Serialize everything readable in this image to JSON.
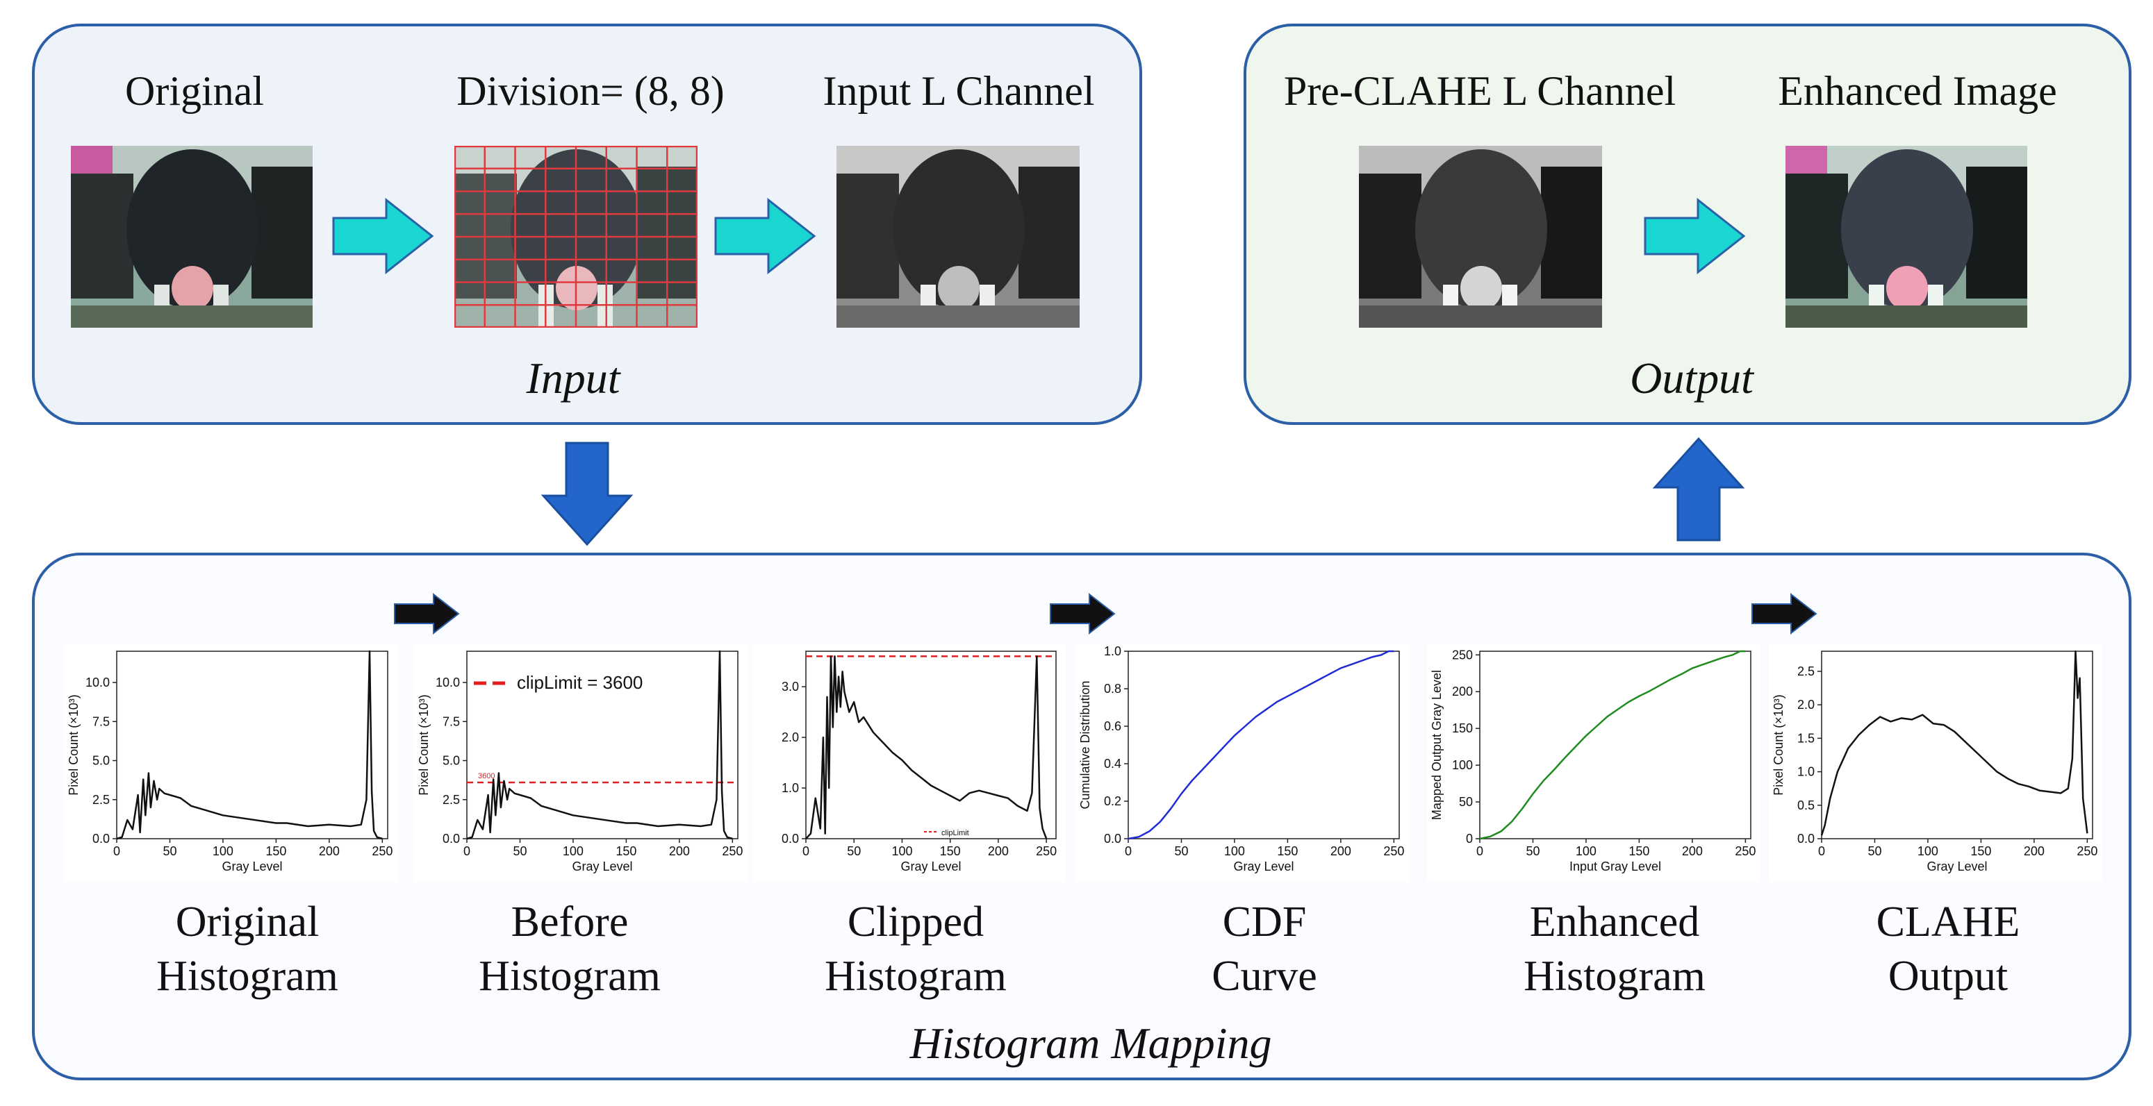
{
  "input_panel": {
    "section_label": "Input",
    "original_label": "Original",
    "division_label": "Division= (8, 8)",
    "input_l_label": "Input L Channel"
  },
  "output_panel": {
    "section_label": "Output",
    "pre_clahe_label": "Pre-CLAHE L Channel",
    "enhanced_label": "Enhanced Image"
  },
  "mapping_panel": {
    "section_label": "Histogram Mapping",
    "captions": [
      [
        "Original",
        "Histogram"
      ],
      [
        "Before",
        "Histogram"
      ],
      [
        "Clipped",
        "Histogram"
      ],
      [
        "CDF",
        "Curve"
      ],
      [
        "Enhanced",
        "Histogram"
      ],
      [
        "CLAHE",
        "Output"
      ]
    ]
  },
  "colors": {
    "panel_border": "#2b5fa8",
    "input_fill": "#eef3fa",
    "output_fill": "#eef6ee",
    "mapping_fill": "#fbfcff",
    "cyan_arrow": "#19d6d0",
    "blue_arrow": "#2266cc",
    "grid_line": "#e0393e",
    "cdf_curve": "#1f2bd6",
    "mapping_curve": "#1e8c1e",
    "clip_line": "#e02020"
  },
  "icons": [
    "cyan-right-arrow-icon",
    "blue-down-arrow-icon",
    "blue-up-arrow-icon",
    "black-right-arrow-icon"
  ],
  "chart_data": [
    {
      "type": "line",
      "name_key": "original",
      "xlabel": "Gray Level",
      "ylabel": "Pixel Count (×10³)",
      "xlim": [
        0,
        255
      ],
      "ylim": [
        0,
        12
      ],
      "xticks": [
        0,
        50,
        100,
        150,
        200,
        250
      ],
      "yticks": [
        0.0,
        2.5,
        5.0,
        7.5,
        10.0
      ],
      "x": [
        0,
        5,
        10,
        15,
        20,
        22,
        25,
        27,
        30,
        32,
        35,
        38,
        40,
        45,
        50,
        60,
        70,
        80,
        100,
        120,
        140,
        150,
        160,
        180,
        200,
        220,
        230,
        235,
        238,
        240,
        242,
        245,
        250
      ],
      "y": [
        0.0,
        0.1,
        1.2,
        0.6,
        2.8,
        0.4,
        3.8,
        1.5,
        4.2,
        2.0,
        3.7,
        2.5,
        3.2,
        2.9,
        2.8,
        2.6,
        2.1,
        1.9,
        1.5,
        1.3,
        1.1,
        1.0,
        1.0,
        0.8,
        0.9,
        0.8,
        0.9,
        2.5,
        12.0,
        3.0,
        0.5,
        0.1,
        0.0
      ]
    },
    {
      "type": "line",
      "name_key": "before",
      "xlabel": "Gray Level",
      "ylabel": "Pixel Count (×10³)",
      "legend": "clipLimit = 3600",
      "small_label": "3600",
      "clip": 3.6,
      "xlim": [
        0,
        255
      ],
      "ylim": [
        0,
        12
      ],
      "xticks": [
        0,
        50,
        100,
        150,
        200,
        250
      ],
      "yticks": [
        0.0,
        2.5,
        5.0,
        7.5,
        10.0
      ],
      "x": [
        0,
        5,
        10,
        15,
        20,
        22,
        25,
        27,
        30,
        32,
        35,
        38,
        40,
        45,
        50,
        60,
        70,
        80,
        100,
        120,
        140,
        150,
        160,
        180,
        200,
        220,
        230,
        235,
        238,
        240,
        242,
        245,
        250
      ],
      "y": [
        0.0,
        0.1,
        1.2,
        0.6,
        2.8,
        0.4,
        3.8,
        1.5,
        4.2,
        2.0,
        3.7,
        2.5,
        3.2,
        2.9,
        2.8,
        2.6,
        2.1,
        1.9,
        1.5,
        1.3,
        1.1,
        1.0,
        1.0,
        0.8,
        0.9,
        0.8,
        0.9,
        2.5,
        12.0,
        3.0,
        0.5,
        0.1,
        0.0
      ]
    },
    {
      "type": "line",
      "name_key": "clipped",
      "xlabel": "Gray Level",
      "ylabel": "",
      "legend": "clipLimit",
      "clip": 3.6,
      "xlim": [
        0,
        260
      ],
      "ylim": [
        0,
        3.7
      ],
      "xticks": [
        0,
        50,
        100,
        150,
        200,
        250
      ],
      "yticks": [
        0.0,
        1.0,
        2.0,
        3.0
      ],
      "x": [
        0,
        5,
        10,
        15,
        18,
        20,
        22,
        24,
        26,
        28,
        30,
        32,
        34,
        36,
        38,
        40,
        45,
        50,
        55,
        60,
        70,
        80,
        90,
        100,
        110,
        120,
        130,
        140,
        150,
        160,
        170,
        180,
        190,
        200,
        210,
        220,
        230,
        235,
        240,
        243,
        246,
        250
      ],
      "y": [
        0.0,
        0.1,
        0.8,
        0.2,
        2.0,
        0.1,
        2.8,
        1.0,
        3.6,
        2.2,
        3.6,
        2.5,
        3.2,
        2.6,
        3.3,
        2.9,
        2.5,
        2.7,
        2.3,
        2.4,
        2.1,
        1.9,
        1.7,
        1.55,
        1.35,
        1.2,
        1.05,
        0.95,
        0.85,
        0.75,
        0.9,
        0.95,
        0.9,
        0.85,
        0.8,
        0.65,
        0.55,
        0.9,
        3.6,
        0.6,
        0.2,
        0.0
      ]
    },
    {
      "type": "line",
      "name_key": "cdf",
      "xlabel": "Gray Level",
      "ylabel": "Cumulative Distribution",
      "xlim": [
        0,
        255
      ],
      "ylim": [
        0,
        1
      ],
      "xticks": [
        0,
        50,
        100,
        150,
        200,
        250
      ],
      "yticks": [
        0.0,
        0.2,
        0.4,
        0.6,
        0.8,
        1.0
      ],
      "x": [
        0,
        10,
        20,
        30,
        40,
        50,
        60,
        70,
        80,
        90,
        100,
        110,
        120,
        130,
        140,
        150,
        160,
        170,
        180,
        190,
        200,
        210,
        220,
        230,
        238,
        245,
        250
      ],
      "y": [
        0.0,
        0.01,
        0.04,
        0.09,
        0.16,
        0.24,
        0.31,
        0.37,
        0.43,
        0.49,
        0.55,
        0.6,
        0.65,
        0.69,
        0.73,
        0.76,
        0.79,
        0.82,
        0.85,
        0.88,
        0.91,
        0.93,
        0.95,
        0.97,
        0.98,
        1.0,
        1.0
      ]
    },
    {
      "type": "line",
      "name_key": "mapping",
      "xlabel": "Input Gray Level",
      "ylabel": "Mapped Output Gray Level",
      "xlim": [
        0,
        255
      ],
      "ylim": [
        0,
        255
      ],
      "xticks": [
        0,
        50,
        100,
        150,
        200,
        250
      ],
      "yticks": [
        0,
        50,
        100,
        150,
        200,
        250
      ],
      "x": [
        0,
        10,
        20,
        30,
        40,
        50,
        60,
        70,
        80,
        90,
        100,
        110,
        120,
        130,
        140,
        150,
        160,
        170,
        180,
        190,
        200,
        210,
        220,
        230,
        238,
        245,
        250
      ],
      "y": [
        0,
        3,
        10,
        23,
        41,
        61,
        79,
        94,
        110,
        125,
        140,
        153,
        166,
        176,
        186,
        194,
        201,
        209,
        217,
        224,
        232,
        237,
        242,
        247,
        250,
        255,
        255
      ]
    },
    {
      "type": "line",
      "name_key": "clahe",
      "xlabel": "Gray Level",
      "ylabel": "Pixel Count (×10³)",
      "xlim": [
        0,
        255
      ],
      "ylim": [
        0,
        2.8
      ],
      "xticks": [
        0,
        50,
        100,
        150,
        200,
        250
      ],
      "yticks": [
        0.0,
        0.5,
        1.0,
        1.5,
        2.0,
        2.5
      ],
      "x": [
        0,
        3,
        8,
        15,
        25,
        35,
        45,
        55,
        65,
        75,
        85,
        95,
        105,
        115,
        125,
        135,
        145,
        155,
        165,
        175,
        185,
        195,
        205,
        215,
        225,
        232,
        236,
        239,
        241,
        243,
        246,
        250
      ],
      "y": [
        0.05,
        0.2,
        0.6,
        1.0,
        1.35,
        1.55,
        1.7,
        1.82,
        1.75,
        1.8,
        1.78,
        1.85,
        1.72,
        1.7,
        1.6,
        1.45,
        1.3,
        1.15,
        1.0,
        0.9,
        0.82,
        0.78,
        0.72,
        0.7,
        0.68,
        0.75,
        1.2,
        2.8,
        2.1,
        2.4,
        0.6,
        0.08
      ]
    }
  ]
}
